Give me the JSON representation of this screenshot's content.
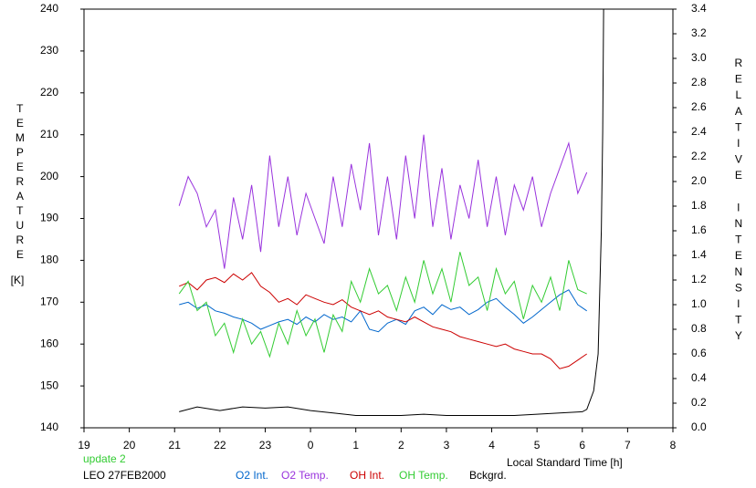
{
  "chart_data": {
    "type": "line",
    "note_top": "update 2",
    "title": "LEO 27FEB2000",
    "xlabel": "Local Standard Time [h]",
    "ylabel": "TEMPERATURE",
    "ylabel_unit": "[K]",
    "y2label": "RELATIVE INTENSITY",
    "xlim": [
      19,
      32
    ],
    "xticks": [
      19,
      20,
      21,
      22,
      23,
      {
        "value": 24,
        "label": "0"
      },
      {
        "value": 25,
        "label": "1"
      },
      {
        "value": 26,
        "label": "2"
      },
      {
        "value": 27,
        "label": "3"
      },
      {
        "value": 28,
        "label": "4"
      },
      {
        "value": 29,
        "label": "5"
      },
      {
        "value": 30,
        "label": "6"
      },
      {
        "value": 31,
        "label": "7"
      },
      {
        "value": 32,
        "label": "8"
      }
    ],
    "ylim": [
      140,
      240
    ],
    "yticks": [
      140,
      150,
      160,
      170,
      180,
      190,
      200,
      210,
      220,
      230,
      240
    ],
    "y2lim": [
      0,
      3.4
    ],
    "y2ticks": [
      {
        "value": 0,
        "label": "0.0"
      },
      0.2,
      0.4,
      0.6,
      0.8,
      {
        "value": 1,
        "label": "1.0"
      },
      1.2,
      1.4,
      1.6,
      1.8,
      {
        "value": 2,
        "label": "2.0"
      },
      2.2,
      2.4,
      2.6,
      2.8,
      {
        "value": 3,
        "label": "3.0"
      },
      3.2,
      3.4
    ],
    "x": [
      21.1,
      21.3,
      21.5,
      21.7,
      21.9,
      22.1,
      22.3,
      22.5,
      22.7,
      22.9,
      23.1,
      23.3,
      23.5,
      23.7,
      23.9,
      24.1,
      24.3,
      24.5,
      24.7,
      24.9,
      25.1,
      25.3,
      25.5,
      25.7,
      25.9,
      26.1,
      26.3,
      26.5,
      26.7,
      26.9,
      27.1,
      27.3,
      27.5,
      27.7,
      27.9,
      28.1,
      28.3,
      28.5,
      28.7,
      28.9,
      29.1,
      29.3,
      29.5,
      29.7,
      29.9,
      30.1
    ],
    "series": [
      {
        "name": "O2 Int.",
        "color": "#0066cc",
        "axis": "y2",
        "values": [
          1.0,
          1.02,
          0.97,
          1.0,
          0.95,
          0.93,
          0.9,
          0.88,
          0.85,
          0.8,
          0.83,
          0.86,
          0.88,
          0.84,
          0.9,
          0.86,
          0.92,
          0.88,
          0.9,
          0.86,
          0.95,
          0.8,
          0.78,
          0.85,
          0.88,
          0.84,
          0.95,
          0.98,
          0.92,
          1.0,
          0.96,
          0.98,
          0.92,
          0.96,
          1.02,
          1.05,
          0.98,
          0.92,
          0.85,
          0.9,
          0.96,
          1.02,
          1.08,
          1.12,
          1.0,
          0.95
        ]
      },
      {
        "name": "O2 Temp.",
        "color": "#9933dd",
        "axis": "y",
        "values": [
          193,
          200,
          196,
          188,
          192,
          178,
          195,
          185,
          198,
          182,
          205,
          188,
          200,
          186,
          196,
          190,
          184,
          200,
          188,
          203,
          192,
          208,
          186,
          200,
          185,
          205,
          190,
          210,
          188,
          202,
          185,
          198,
          190,
          204,
          188,
          200,
          186,
          198,
          192,
          200,
          188,
          196,
          202,
          208,
          196,
          201
        ]
      },
      {
        "name": "OH Int.",
        "color": "#cc0000",
        "axis": "y2",
        "values": [
          1.15,
          1.18,
          1.12,
          1.2,
          1.22,
          1.18,
          1.25,
          1.2,
          1.26,
          1.15,
          1.1,
          1.02,
          1.05,
          1.0,
          1.08,
          1.05,
          1.02,
          1.0,
          1.04,
          0.98,
          0.95,
          0.92,
          0.95,
          0.9,
          0.88,
          0.86,
          0.9,
          0.86,
          0.82,
          0.8,
          0.78,
          0.74,
          0.72,
          0.7,
          0.68,
          0.66,
          0.68,
          0.64,
          0.62,
          0.6,
          0.6,
          0.56,
          0.48,
          0.5,
          0.55,
          0.6
        ]
      },
      {
        "name": "OH Temp.",
        "color": "#33cc33",
        "axis": "y",
        "values": [
          172,
          175,
          168,
          170,
          162,
          165,
          158,
          166,
          160,
          163,
          157,
          165,
          160,
          168,
          162,
          166,
          158,
          167,
          163,
          175,
          170,
          178,
          172,
          174,
          168,
          176,
          170,
          180,
          172,
          178,
          170,
          182,
          174,
          176,
          168,
          178,
          172,
          175,
          166,
          174,
          170,
          176,
          168,
          180,
          173,
          172
        ]
      },
      {
        "name": "Bckgrd.",
        "color": "#000000",
        "axis": "y2",
        "x": [
          21.1,
          21.5,
          22,
          22.5,
          23,
          23.5,
          24,
          24.5,
          25,
          25.5,
          26,
          26.5,
          27,
          27.5,
          28,
          28.5,
          29,
          29.5,
          30,
          30.1,
          30.25,
          30.35,
          30.42,
          30.45,
          30.47
        ],
        "values": [
          0.13,
          0.17,
          0.14,
          0.17,
          0.16,
          0.17,
          0.14,
          0.12,
          0.1,
          0.1,
          0.1,
          0.11,
          0.1,
          0.1,
          0.1,
          0.1,
          0.11,
          0.12,
          0.13,
          0.15,
          0.3,
          0.6,
          1.6,
          2.4,
          3.4
        ]
      }
    ]
  }
}
